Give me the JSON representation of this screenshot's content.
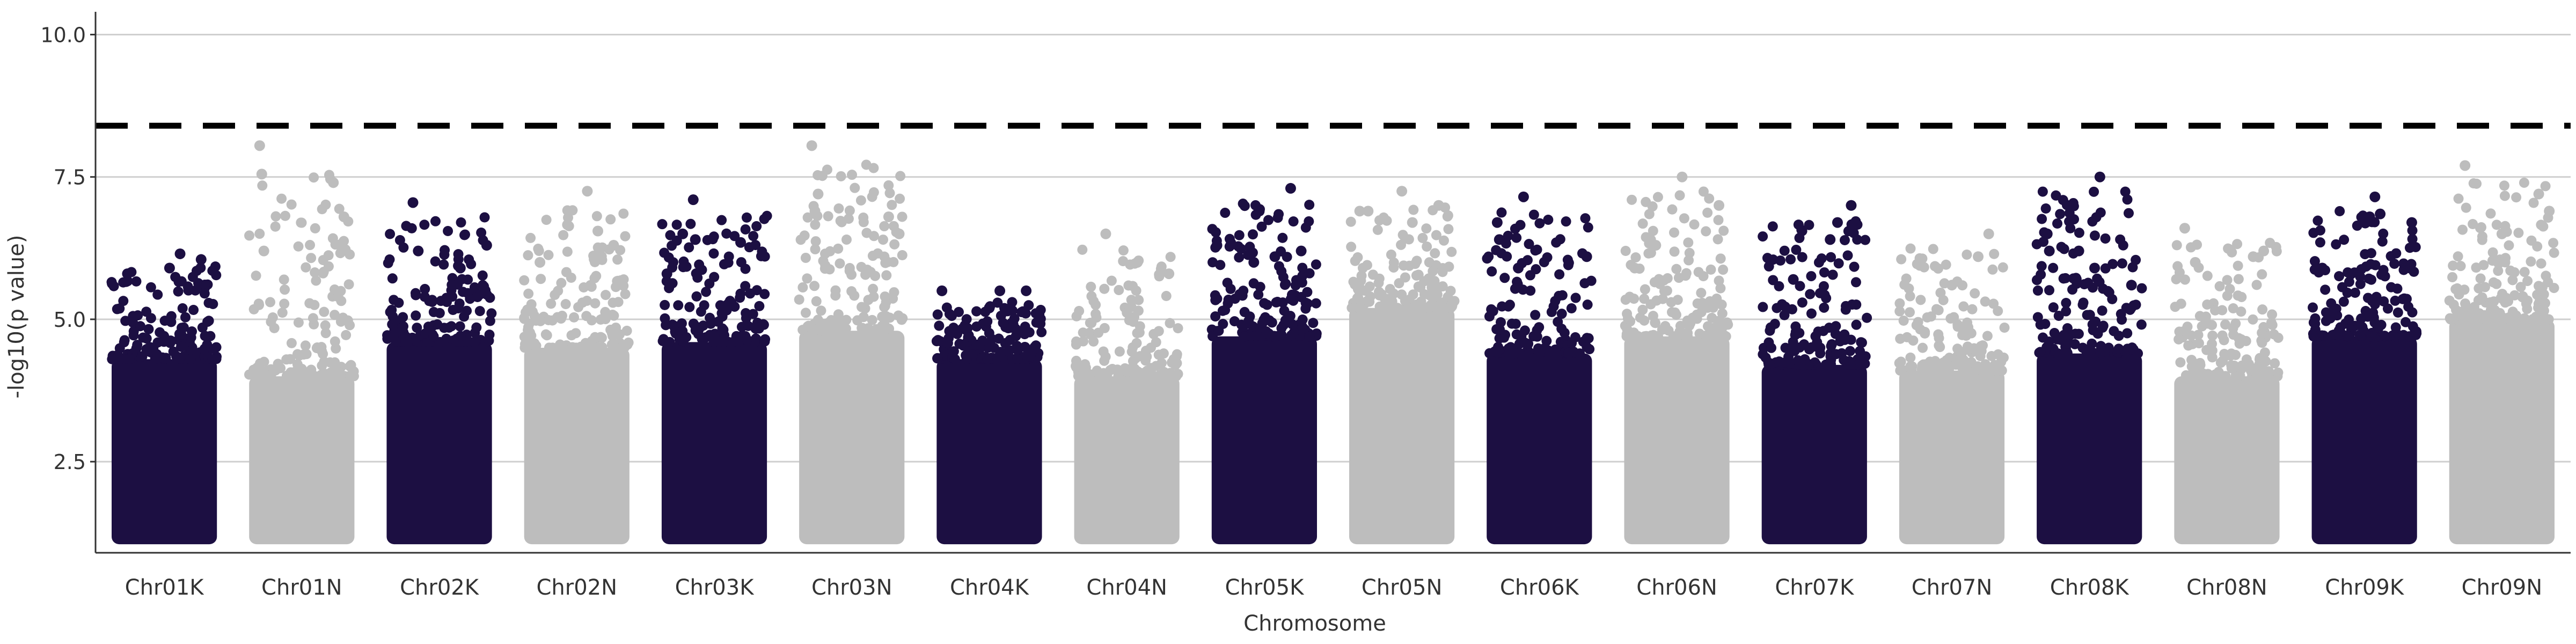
{
  "chart_data": {
    "type": "scatter",
    "subtype": "manhattan",
    "xlabel": "Chromosome",
    "ylabel": "-log10(p value)",
    "ylim": [
      0.9,
      10.4
    ],
    "y_ticks": [
      2.5,
      5.0,
      7.5,
      10.0
    ],
    "y_tick_labels": [
      "2.5",
      "5.0",
      "7.5",
      "10.0"
    ],
    "threshold": 8.4,
    "threshold_style": "dashed",
    "grid": "horizontal major",
    "legend": "none",
    "colors": {
      "dark": "#1c0f42",
      "light": "#bdbdbd",
      "threshold": "#000000",
      "grid": "#cfcfcf",
      "axis": "#333333"
    },
    "categories": [
      "Chr01K",
      "Chr01N",
      "Chr02K",
      "Chr02N",
      "Chr03K",
      "Chr03N",
      "Chr04K",
      "Chr04N",
      "Chr05K",
      "Chr05N",
      "Chr06K",
      "Chr06N",
      "Chr07K",
      "Chr07N",
      "Chr08K",
      "Chr08N",
      "Chr09K",
      "Chr09N"
    ],
    "chromosomes": [
      {
        "name": "Chr01K",
        "color": "dark",
        "dense_top": 4.3,
        "max": 6.2,
        "highlights": [
          [
            0.55,
            5.9
          ],
          [
            0.65,
            6.15
          ],
          [
            0.85,
            6.05
          ],
          [
            0.15,
            5.8
          ]
        ]
      },
      {
        "name": "Chr01N",
        "color": "light",
        "dense_top": 4.0,
        "max": 8.05,
        "highlights": [
          [
            0.1,
            8.05
          ],
          [
            0.12,
            7.55
          ],
          [
            0.14,
            6.2
          ],
          [
            0.8,
            7.4
          ],
          [
            0.9,
            6.8
          ]
        ]
      },
      {
        "name": "Chr02K",
        "color": "dark",
        "dense_top": 4.6,
        "max": 7.05,
        "highlights": [
          [
            0.25,
            7.05
          ],
          [
            0.3,
            6.2
          ],
          [
            0.95,
            6.3
          ],
          [
            0.7,
            5.9
          ]
        ]
      },
      {
        "name": "Chr02N",
        "color": "light",
        "dense_top": 4.5,
        "max": 7.25,
        "highlights": [
          [
            0.6,
            7.25
          ],
          [
            0.7,
            6.55
          ],
          [
            0.15,
            6.0
          ],
          [
            0.85,
            6.3
          ]
        ]
      },
      {
        "name": "Chr03K",
        "color": "dark",
        "dense_top": 4.6,
        "max": 7.1,
        "highlights": [
          [
            0.2,
            6.5
          ],
          [
            0.3,
            7.1
          ],
          [
            0.32,
            6.4
          ],
          [
            0.75,
            6.35
          ],
          [
            0.05,
            5.8
          ]
        ]
      },
      {
        "name": "Chr03N",
        "color": "light",
        "dense_top": 4.8,
        "max": 8.05,
        "highlights": [
          [
            0.12,
            8.05
          ],
          [
            0.18,
            7.2
          ],
          [
            0.15,
            6.9
          ],
          [
            0.85,
            6.8
          ],
          [
            0.95,
            6.5
          ]
        ]
      },
      {
        "name": "Chr04K",
        "color": "dark",
        "dense_top": 4.3,
        "max": 5.6,
        "highlights": [
          [
            0.05,
            5.5
          ],
          [
            0.6,
            5.5
          ],
          [
            0.85,
            5.5
          ],
          [
            0.5,
            5.2
          ]
        ]
      },
      {
        "name": "Chr04N",
        "color": "light",
        "dense_top": 4.0,
        "max": 6.5,
        "highlights": [
          [
            0.3,
            6.5
          ],
          [
            0.6,
            6.0
          ],
          [
            0.9,
            5.8
          ]
        ]
      },
      {
        "name": "Chr05K",
        "color": "dark",
        "dense_top": 4.7,
        "max": 7.3,
        "highlights": [
          [
            0.75,
            7.3
          ],
          [
            0.05,
            6.3
          ],
          [
            0.4,
            6.0
          ],
          [
            0.85,
            6.2
          ],
          [
            0.6,
            6.1
          ]
        ]
      },
      {
        "name": "Chr05N",
        "color": "light",
        "dense_top": 5.2,
        "max": 7.25,
        "highlights": [
          [
            0.1,
            6.9
          ],
          [
            0.18,
            6.9
          ],
          [
            0.5,
            7.25
          ],
          [
            0.6,
            6.7
          ],
          [
            0.85,
            7.0
          ]
        ]
      },
      {
        "name": "Chr06K",
        "color": "dark",
        "dense_top": 4.4,
        "max": 7.15,
        "highlights": [
          [
            0.1,
            6.7
          ],
          [
            0.12,
            6.4
          ],
          [
            0.35,
            7.15
          ],
          [
            0.95,
            6.1
          ],
          [
            0.3,
            5.9
          ]
        ]
      },
      {
        "name": "Chr06N",
        "color": "light",
        "dense_top": 4.7,
        "max": 7.5,
        "highlights": [
          [
            0.55,
            7.5
          ],
          [
            0.9,
            7.0
          ],
          [
            0.3,
            6.3
          ],
          [
            0.1,
            5.9
          ]
        ]
      },
      {
        "name": "Chr07K",
        "color": "dark",
        "dense_top": 4.2,
        "max": 7.0,
        "highlights": [
          [
            0.65,
            6.4
          ],
          [
            0.72,
            6.7
          ],
          [
            0.85,
            7.0
          ],
          [
            0.3,
            5.7
          ]
        ]
      },
      {
        "name": "Chr07N",
        "color": "light",
        "dense_top": 4.1,
        "max": 6.5,
        "highlights": [
          [
            0.75,
            6.1
          ],
          [
            0.85,
            6.5
          ],
          [
            0.5,
            5.6
          ]
        ]
      },
      {
        "name": "Chr08K",
        "color": "dark",
        "dense_top": 4.4,
        "max": 7.5,
        "highlights": [
          [
            0.1,
            6.5
          ],
          [
            0.12,
            6.2
          ],
          [
            0.4,
            6.2
          ],
          [
            0.55,
            5.9
          ],
          [
            0.6,
            7.5
          ],
          [
            0.9,
            5.6
          ]
        ]
      },
      {
        "name": "Chr08N",
        "color": "light",
        "dense_top": 4.0,
        "max": 6.6,
        "highlights": [
          [
            0.1,
            6.6
          ],
          [
            0.2,
            6.0
          ],
          [
            0.75,
            6.1
          ],
          [
            0.85,
            6.2
          ]
        ]
      },
      {
        "name": "Chr09K",
        "color": "dark",
        "dense_top": 4.7,
        "max": 7.15,
        "highlights": [
          [
            0.55,
            6.8
          ],
          [
            0.6,
            7.15
          ],
          [
            0.65,
            6.85
          ],
          [
            0.95,
            6.7
          ],
          [
            0.1,
            5.9
          ]
        ]
      },
      {
        "name": "Chr09N",
        "color": "light",
        "dense_top": 5.0,
        "max": 7.7,
        "highlights": [
          [
            0.15,
            7.7
          ],
          [
            0.5,
            6.5
          ],
          [
            0.85,
            7.2
          ],
          [
            0.95,
            6.9
          ]
        ]
      }
    ]
  }
}
